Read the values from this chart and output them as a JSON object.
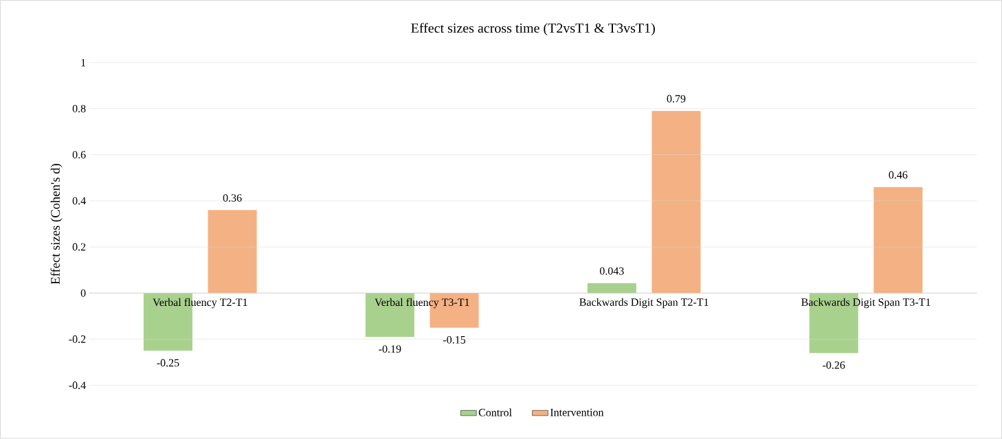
{
  "chart_data": {
    "type": "bar",
    "title": "Effect sizes across time (T2vsT1 & T3vsT1)",
    "ylabel": "Effect sizes (Cohen's d)",
    "categories": [
      "Verbal fluency T2-T1",
      "Verbal fluency T3-T1",
      "Backwards Digit Span T2-T1",
      "Backwards Digit Span T3-T1"
    ],
    "series": [
      {
        "name": "Control",
        "color": "#a9d18e",
        "values": [
          -0.25,
          -0.19,
          0.043,
          -0.26
        ]
      },
      {
        "name": "Intervention",
        "color": "#f4b183",
        "values": [
          0.36,
          -0.15,
          0.79,
          0.46
        ]
      }
    ],
    "ylim": [
      -0.4,
      1
    ],
    "yticks": [
      -0.4,
      -0.2,
      0,
      0.2,
      0.4,
      0.6,
      0.8,
      1
    ],
    "grid": "y",
    "legend": "bottom",
    "data_labels": true
  }
}
